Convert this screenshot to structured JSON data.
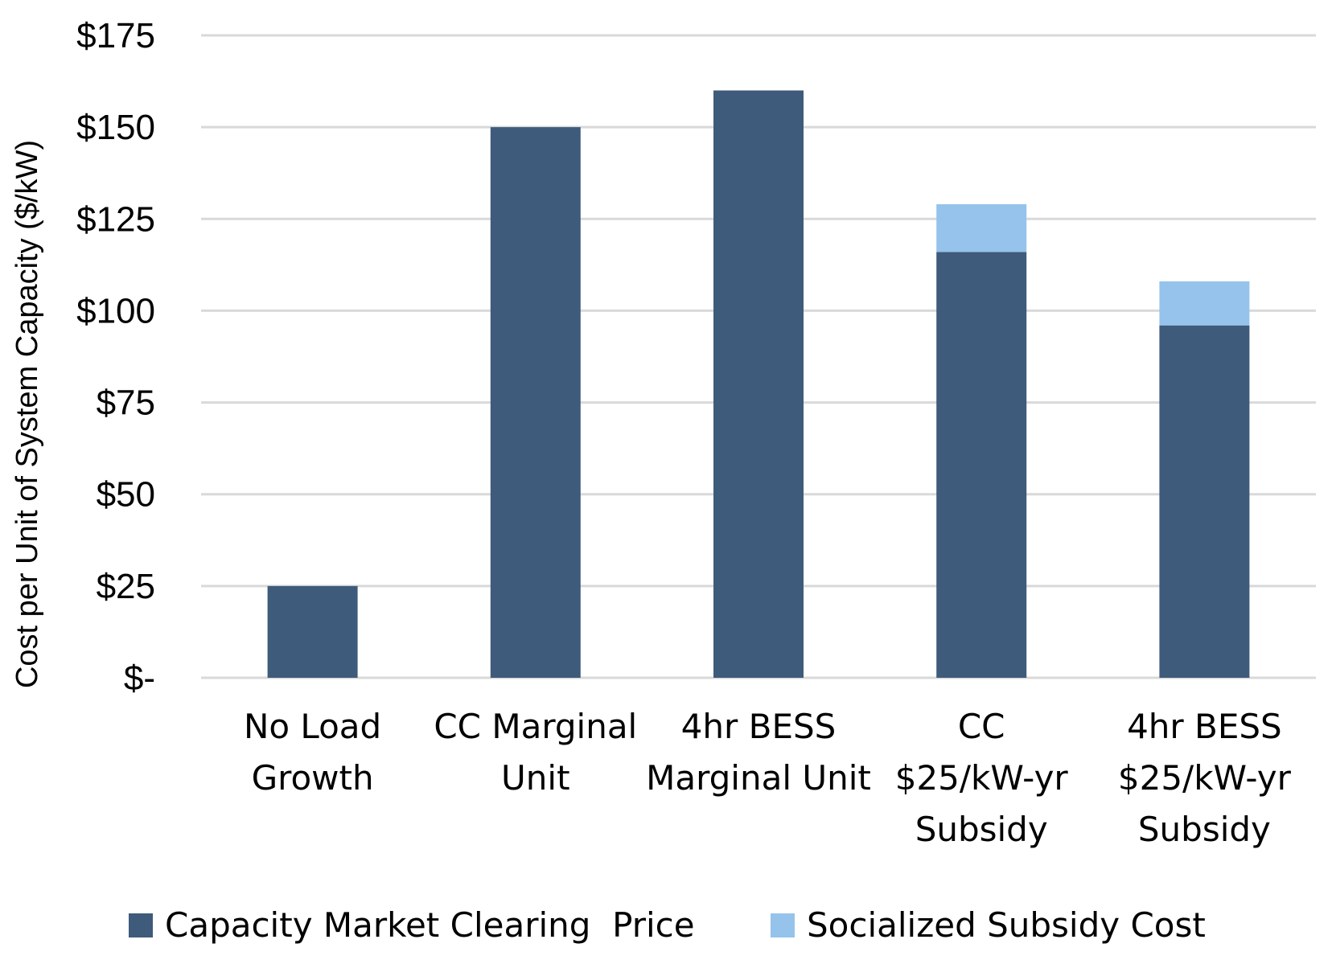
{
  "chart_data": {
    "type": "bar",
    "stacked": true,
    "title": "",
    "xlabel": "",
    "ylabel": "Cost per Unit of System Capacity ($/kW)",
    "ylim": [
      0,
      175
    ],
    "yticks": [
      0,
      25,
      50,
      75,
      100,
      125,
      150,
      175
    ],
    "ytick_labels": [
      "$-",
      "$25",
      "$50",
      "$75",
      "$100",
      "$125",
      "$150",
      "$175"
    ],
    "grid": true,
    "legend_position": "bottom",
    "categories": [
      [
        "No Load",
        "Growth"
      ],
      [
        "CC Marginal",
        "Unit"
      ],
      [
        "4hr BESS",
        "Marginal Unit"
      ],
      [
        "CC",
        "$25/kW-yr",
        "Subsidy"
      ],
      [
        "4hr BESS",
        "$25/kW-yr",
        "Subsidy"
      ]
    ],
    "series": [
      {
        "name": "Capacity Market Clearing  Price",
        "color": "#3f5b7b",
        "values": [
          25,
          150,
          160,
          116,
          96
        ]
      },
      {
        "name": "Socialized Subsidy Cost",
        "color": "#96c3eb",
        "values": [
          0,
          0,
          0,
          13,
          12
        ]
      }
    ]
  }
}
